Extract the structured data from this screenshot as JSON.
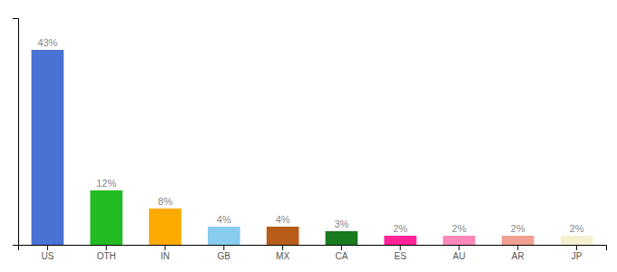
{
  "chart_data": {
    "type": "bar",
    "categories": [
      "US",
      "OTH",
      "IN",
      "GB",
      "MX",
      "CA",
      "ES",
      "AU",
      "AR",
      "JP"
    ],
    "values": [
      43,
      12,
      8,
      4,
      4,
      3,
      2,
      2,
      2,
      2
    ],
    "value_labels": [
      "43%",
      "12%",
      "8%",
      "4%",
      "4%",
      "3%",
      "2%",
      "2%",
      "2%",
      "2%"
    ],
    "colors": [
      "#4a72d4",
      "#22bb22",
      "#ffaa00",
      "#88ccee",
      "#b85c1a",
      "#1a7a20",
      "#ff2299",
      "#ff88bb",
      "#f0a090",
      "#f5f0d0"
    ],
    "ylim": [
      0,
      50
    ],
    "data_labels": true,
    "tick_labels": "x"
  }
}
